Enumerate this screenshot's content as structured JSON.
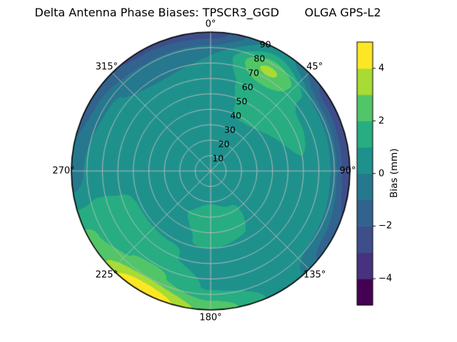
{
  "title": "Delta Antenna Phase Biases: TPSCR3_GGD       OLGA GPS-L2",
  "chart_data": {
    "type": "heatmap",
    "projection": "polar",
    "title": "Delta Antenna Phase Biases: TPSCR3_GGD       OLGA GPS-L2",
    "theta_zero_location": "N",
    "theta_direction": "clockwise",
    "value_range": [
      -5,
      5
    ],
    "levels": [
      -5,
      -4,
      -3,
      -2,
      -1,
      0,
      1,
      2,
      3,
      4,
      5
    ],
    "band_colors": [
      "#440154",
      "#46327e",
      "#3d4e8a",
      "#32638e",
      "#26788e",
      "#1f918d",
      "#27ad81",
      "#52c569",
      "#a8db34",
      "#fde725"
    ],
    "grid_color": "#bfbfbf",
    "azimuth_ticks": [
      {
        "angle_deg": 0,
        "label": "0°"
      },
      {
        "angle_deg": 45,
        "label": "45°"
      },
      {
        "angle_deg": 90,
        "label": "90°"
      },
      {
        "angle_deg": 135,
        "label": "135°"
      },
      {
        "angle_deg": 180,
        "label": "180°"
      },
      {
        "angle_deg": 225,
        "label": "225°"
      },
      {
        "angle_deg": 270,
        "label": "270°"
      },
      {
        "angle_deg": 315,
        "label": "315°"
      }
    ],
    "radial_ticks": [
      {
        "value": 10,
        "label": "10"
      },
      {
        "value": 20,
        "label": "20"
      },
      {
        "value": 30,
        "label": "30"
      },
      {
        "value": 40,
        "label": "40"
      },
      {
        "value": 50,
        "label": "50"
      },
      {
        "value": 60,
        "label": "60"
      },
      {
        "value": 70,
        "label": "70"
      },
      {
        "value": 80,
        "label": "80"
      },
      {
        "value": 90,
        "label": "90"
      }
    ],
    "radial_range": [
      0,
      90
    ],
    "colorbar": {
      "label": "Bias (mm)",
      "min": -5,
      "max": 5,
      "ticks": [
        {
          "value": 4,
          "label": "4"
        },
        {
          "value": 2,
          "label": "2"
        },
        {
          "value": 0,
          "label": "0"
        },
        {
          "value": -2,
          "label": "−2"
        },
        {
          "value": -4,
          "label": "−4"
        }
      ]
    },
    "grid": {
      "azimuth_deg": [
        0,
        30,
        60,
        90,
        120,
        150,
        180,
        210,
        240,
        270,
        300,
        330,
        360
      ],
      "radius": [
        0,
        15,
        30,
        45,
        60,
        75,
        90
      ],
      "bias_mm": [
        [
          0.5,
          0.5,
          0.5,
          0.4,
          0.3,
          0.0,
          -2.5
        ],
        [
          0.5,
          0.6,
          0.8,
          1.2,
          1.6,
          3.2,
          0.5
        ],
        [
          0.5,
          0.6,
          0.8,
          1.0,
          1.3,
          0.4,
          -2.6
        ],
        [
          0.5,
          0.5,
          0.6,
          0.7,
          0.9,
          0.2,
          -2.8
        ],
        [
          0.5,
          0.4,
          0.4,
          0.5,
          0.7,
          0.3,
          -1.6
        ],
        [
          0.5,
          0.6,
          1.1,
          1.0,
          0.6,
          0.5,
          0.8
        ],
        [
          0.5,
          0.8,
          1.3,
          1.1,
          0.7,
          0.9,
          2.6
        ],
        [
          0.5,
          0.7,
          1.0,
          0.9,
          1.1,
          2.2,
          5.0
        ],
        [
          0.5,
          0.5,
          0.7,
          0.8,
          1.3,
          1.7,
          2.2
        ],
        [
          0.5,
          0.5,
          0.6,
          0.9,
          0.7,
          0.5,
          -0.6
        ],
        [
          0.5,
          0.5,
          0.7,
          0.6,
          0.4,
          0.1,
          -1.4
        ],
        [
          0.5,
          0.5,
          0.5,
          0.4,
          0.2,
          -0.3,
          -2.2
        ],
        [
          0.5,
          0.5,
          0.5,
          0.4,
          0.3,
          0.0,
          -2.5
        ]
      ]
    }
  }
}
